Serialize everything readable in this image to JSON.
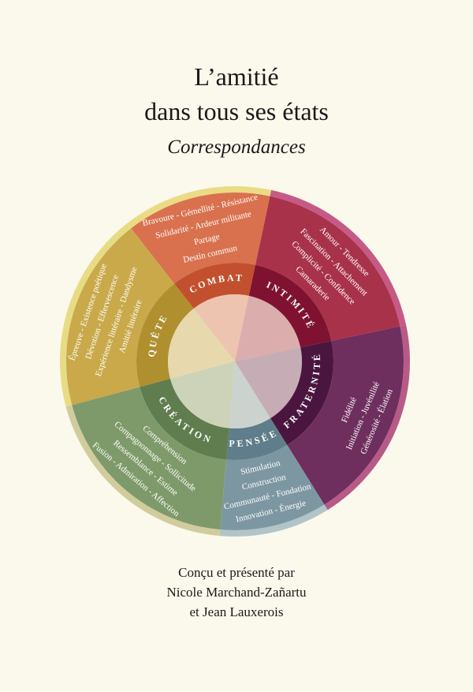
{
  "title": [
    "L’amitié",
    "dans tous ses états"
  ],
  "subtitle": "Correspondances",
  "wheel": {
    "sectors": [
      {
        "name": "COMBAT",
        "words": [
          "Bravoure - Gémellité - Résistance",
          "Solidarité - Ardeur militante",
          "Partage",
          "Destin commun"
        ]
      },
      {
        "name": "INTIMITÉ",
        "words": [
          "Amour - Tendresse",
          "Fascination - Attachement",
          "Complicité - Confidence",
          "Camaraderie"
        ]
      },
      {
        "name": "FRATERNITÉ",
        "words": [
          "Générosité - Élation",
          "Initiation - Juvénilité",
          "Fidélité"
        ]
      },
      {
        "name": "PENSÉE",
        "words": [
          "Innovation - Énergie",
          "Communauté - Fondation",
          "Construction",
          "Stimulation"
        ]
      },
      {
        "name": "CRÉATION",
        "words": [
          "Fusion - Admiration - Affection",
          "Ressemblance - Estime",
          "Compagnonnage - Sollicitude",
          "Compréhension"
        ]
      },
      {
        "name": "QUÊTE",
        "words": [
          "Épreuve - Existence poétique",
          "Dévotion - Effervescence",
          "Expérience littéraire - Dandysme",
          "Amitié littéraire"
        ]
      }
    ]
  },
  "credits": [
    "Conçu et présenté par",
    "Nicole Marchand-Zañartu",
    "et Jean Lauxerois"
  ]
}
